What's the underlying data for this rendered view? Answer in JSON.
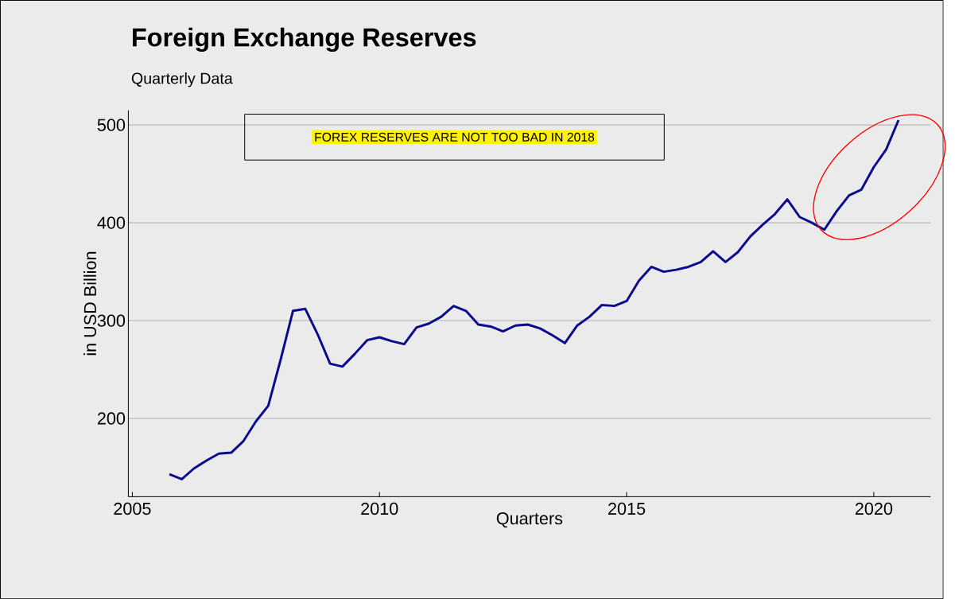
{
  "chart_data": {
    "type": "line",
    "title": "Foreign Exchange Reserves",
    "subtitle": "Quarterly Data",
    "xlabel": "Quarters",
    "ylabel": "in USD Billion",
    "annotations": [
      "FOREX RESERVES ARE NOT TOO BAD IN 2018"
    ],
    "x": [
      2005.75,
      2006.0,
      2006.25,
      2006.5,
      2006.75,
      2007.0,
      2007.25,
      2007.5,
      2007.75,
      2008.0,
      2008.25,
      2008.5,
      2008.75,
      2009.0,
      2009.25,
      2009.5,
      2009.75,
      2010.0,
      2010.25,
      2010.5,
      2010.75,
      2011.0,
      2011.25,
      2011.5,
      2011.75,
      2012.0,
      2012.25,
      2012.5,
      2012.75,
      2013.0,
      2013.25,
      2013.5,
      2013.75,
      2014.0,
      2014.25,
      2014.5,
      2014.75,
      2015.0,
      2015.25,
      2015.5,
      2015.75,
      2016.0,
      2016.25,
      2016.5,
      2016.75,
      2017.0,
      2017.25,
      2017.5,
      2017.75,
      2018.0,
      2018.25,
      2018.5,
      2018.75,
      2019.0,
      2019.25,
      2019.5,
      2019.75,
      2020.0,
      2020.25,
      2020.5
    ],
    "series": [
      {
        "color": "#0a0a8c",
        "values": [
          143,
          138,
          149,
          157,
          164,
          165,
          177,
          197,
          213,
          260,
          310,
          312,
          286,
          256,
          253,
          266,
          280,
          283,
          279,
          276,
          293,
          297,
          304,
          315,
          310,
          296,
          294,
          289,
          295,
          296,
          292,
          285,
          277,
          295,
          304,
          316,
          315,
          320,
          341,
          355,
          350,
          352,
          355,
          360,
          371,
          360,
          370,
          386,
          398,
          409,
          424,
          406,
          400,
          393,
          412,
          428,
          434,
          457,
          475,
          505
        ]
      }
    ],
    "xlim": [
      2004.92,
      2021.15
    ],
    "ylim": [
      120,
      515
    ],
    "xticks": [
      2005,
      2010,
      2015,
      2020
    ],
    "yticks": [
      200,
      300,
      400,
      500
    ],
    "grid": "y"
  }
}
